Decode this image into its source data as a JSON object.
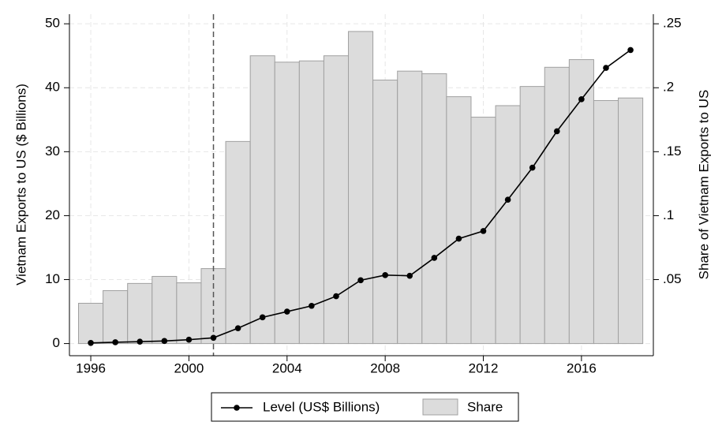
{
  "chart_data": {
    "type": "bar+line",
    "x": [
      1996,
      1997,
      1998,
      1999,
      2000,
      2001,
      2002,
      2003,
      2004,
      2005,
      2006,
      2007,
      2008,
      2009,
      2010,
      2011,
      2012,
      2013,
      2014,
      2015,
      2016,
      2017,
      2018
    ],
    "series": [
      {
        "name": "Level (US$ Billions)",
        "type": "line",
        "color": "#000000",
        "values": [
          0.1,
          0.2,
          0.3,
          0.4,
          0.6,
          0.9,
          2.4,
          4.1,
          5.0,
          5.9,
          7.4,
          9.9,
          10.7,
          10.6,
          13.4,
          16.4,
          17.6,
          22.5,
          27.5,
          33.2,
          38.2,
          43.1,
          45.9
        ]
      },
      {
        "name": "Share",
        "type": "bar",
        "axis": "y2",
        "color": "#dcdcdc",
        "values": [
          0.0315,
          0.0414,
          0.047,
          0.0525,
          0.0475,
          0.0586,
          0.158,
          0.225,
          0.22,
          0.221,
          0.225,
          0.244,
          0.206,
          0.213,
          0.211,
          0.193,
          0.177,
          0.186,
          0.201,
          0.216,
          0.222,
          0.19,
          0.192
        ]
      }
    ],
    "ylabel": "Vietnam Exports to US ($ Billions)",
    "y2label": "Share of Vietnam Exports to US",
    "xlim": [
      1995.13,
      2018.93
    ],
    "xticks": [
      1996,
      2000,
      2004,
      2008,
      2012,
      2016
    ],
    "ylim": [
      -1.9,
      51.5
    ],
    "yticks": [
      0,
      10,
      20,
      30,
      40,
      50
    ],
    "y2lim": [
      -0.0095,
      0.2575
    ],
    "y2ticks": [
      {
        "value": 0.05,
        "label": ".05"
      },
      {
        "value": 0.1,
        "label": ".1"
      },
      {
        "value": 0.15,
        "label": ".15"
      },
      {
        "value": 0.2,
        "label": ".2"
      },
      {
        "value": 0.25,
        "label": ".25"
      }
    ],
    "vline": 2001,
    "grid": true,
    "legend": "bottom"
  }
}
